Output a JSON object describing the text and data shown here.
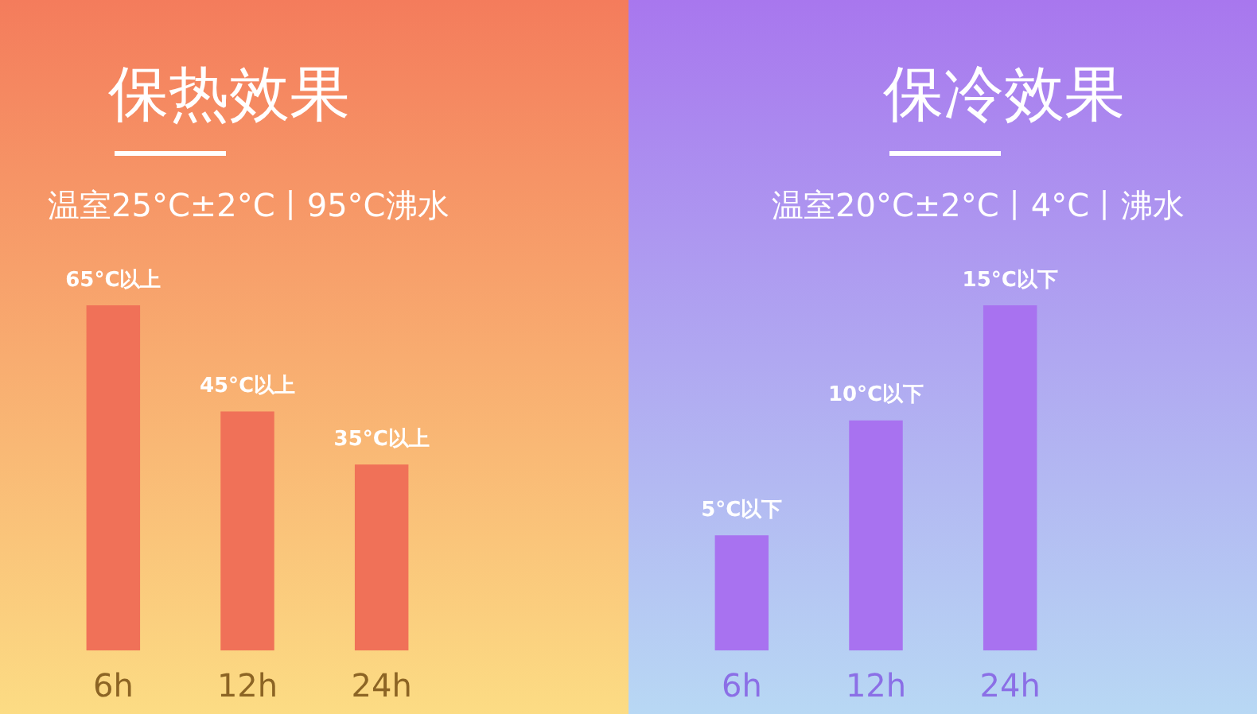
{
  "chart_data": [
    {
      "type": "bar",
      "title": "保热效果",
      "subtitle": "温室25°C±2°C丨95°C沸水",
      "categories": [
        "6h",
        "12h",
        "24h"
      ],
      "values": [
        65,
        45,
        35
      ],
      "value_labels": [
        "65°C以上",
        "45°C以上",
        "35°C以上"
      ],
      "color": "#f07158"
    },
    {
      "type": "bar",
      "title": "保冷效果",
      "subtitle": "温室20°C±2°C丨4°C丨沸水",
      "categories": [
        "6h",
        "12h",
        "24h"
      ],
      "values": [
        5,
        10,
        15
      ],
      "value_labels": [
        "5°C以下",
        "10°C以下",
        "15°C以下"
      ],
      "color": "#a872f0"
    }
  ]
}
